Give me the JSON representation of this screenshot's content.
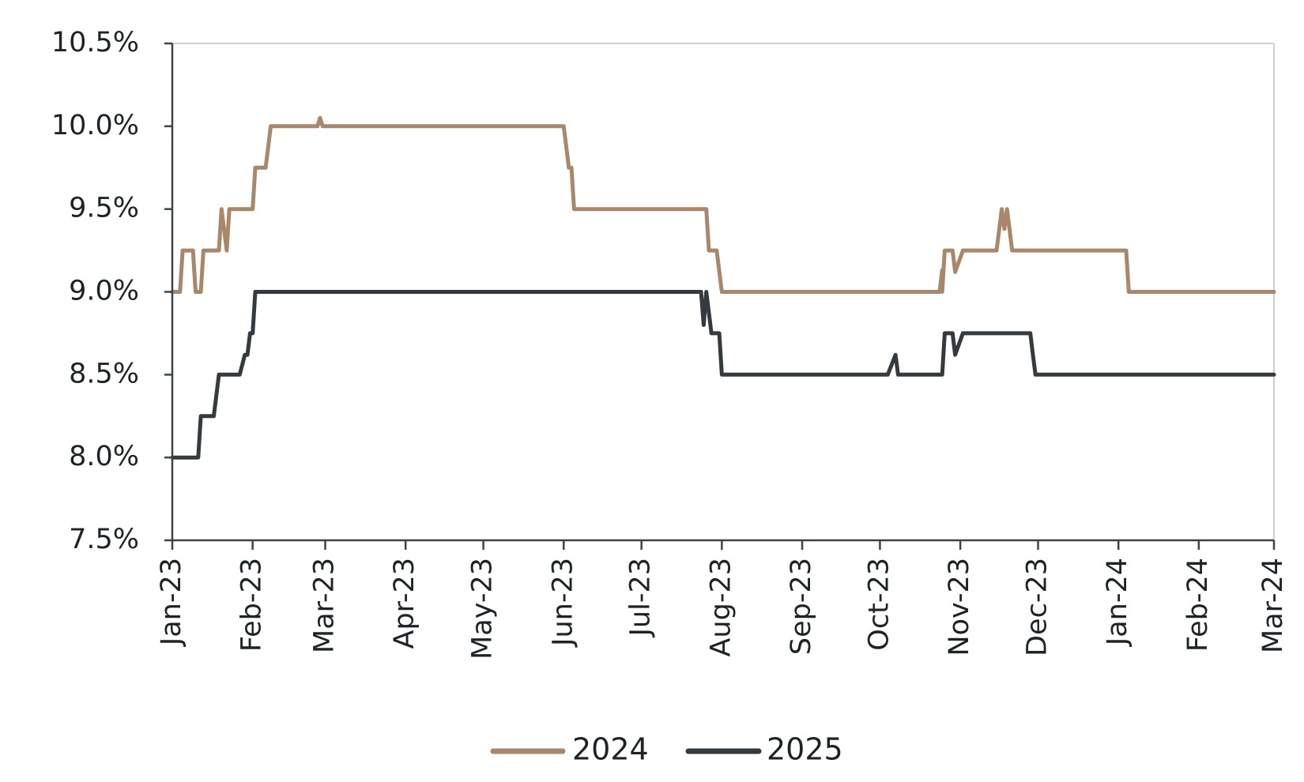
{
  "chart_data": {
    "type": "line",
    "title": "",
    "xlabel": "",
    "ylabel": "",
    "x_tick_labels": [
      "Jan-23",
      "Feb-23",
      "Mar-23",
      "Apr-23",
      "May-23",
      "Jun-23",
      "Jul-23",
      "Aug-23",
      "Sep-23",
      "Oct-23",
      "Nov-23",
      "Dec-23",
      "Jan-24",
      "Feb-24",
      "Mar-24"
    ],
    "y_tick_labels": [
      "7.5%",
      "8.0%",
      "8.5%",
      "9.0%",
      "9.5%",
      "10.0%",
      "10.5%"
    ],
    "ylim": [
      7.5,
      10.5
    ],
    "xlim": [
      "2023-01-01",
      "2024-03-01"
    ],
    "grid": false,
    "legend_position": "bottom",
    "series": [
      {
        "name": "2024",
        "color": "#a8876a",
        "points": [
          [
            "2023-01-01",
            9.0
          ],
          [
            "2023-01-04",
            9.0
          ],
          [
            "2023-01-05",
            9.25
          ],
          [
            "2023-01-09",
            9.25
          ],
          [
            "2023-01-10",
            9.0
          ],
          [
            "2023-01-12",
            9.0
          ],
          [
            "2023-01-13",
            9.25
          ],
          [
            "2023-01-19",
            9.25
          ],
          [
            "2023-01-20",
            9.5
          ],
          [
            "2023-01-22",
            9.25
          ],
          [
            "2023-01-23",
            9.5
          ],
          [
            "2023-02-01",
            9.5
          ],
          [
            "2023-02-02",
            9.75
          ],
          [
            "2023-02-06",
            9.75
          ],
          [
            "2023-02-08",
            10.0
          ],
          [
            "2023-02-26",
            10.0
          ],
          [
            "2023-02-27",
            10.05
          ],
          [
            "2023-02-28",
            10.0
          ],
          [
            "2023-06-01",
            10.0
          ],
          [
            "2023-06-03",
            9.75
          ],
          [
            "2023-06-04",
            9.75
          ],
          [
            "2023-06-05",
            9.5
          ],
          [
            "2023-07-26",
            9.5
          ],
          [
            "2023-07-27",
            9.25
          ],
          [
            "2023-07-30",
            9.25
          ],
          [
            "2023-08-01",
            9.0
          ],
          [
            "2023-10-24",
            9.0
          ],
          [
            "2023-10-25",
            9.13
          ],
          [
            "2023-10-25",
            9.0
          ],
          [
            "2023-10-26",
            9.25
          ],
          [
            "2023-10-29",
            9.25
          ],
          [
            "2023-10-30",
            9.12
          ],
          [
            "2023-11-02",
            9.25
          ],
          [
            "2023-11-15",
            9.25
          ],
          [
            "2023-11-17",
            9.5
          ],
          [
            "2023-11-18",
            9.38
          ],
          [
            "2023-11-19",
            9.5
          ],
          [
            "2023-11-21",
            9.25
          ],
          [
            "2024-01-04",
            9.25
          ],
          [
            "2024-01-05",
            9.0
          ],
          [
            "2024-03-01",
            9.0
          ]
        ]
      },
      {
        "name": "2025",
        "color": "#343b3f",
        "points": [
          [
            "2023-01-01",
            8.0
          ],
          [
            "2023-01-11",
            8.0
          ],
          [
            "2023-01-12",
            8.25
          ],
          [
            "2023-01-17",
            8.25
          ],
          [
            "2023-01-19",
            8.5
          ],
          [
            "2023-01-27",
            8.5
          ],
          [
            "2023-01-29",
            8.62
          ],
          [
            "2023-01-30",
            8.62
          ],
          [
            "2023-01-31",
            8.75
          ],
          [
            "2023-02-01",
            8.75
          ],
          [
            "2023-02-02",
            9.0
          ],
          [
            "2023-07-24",
            9.0
          ],
          [
            "2023-07-25",
            8.8
          ],
          [
            "2023-07-26",
            9.0
          ],
          [
            "2023-07-28",
            8.75
          ],
          [
            "2023-07-31",
            8.75
          ],
          [
            "2023-08-01",
            8.5
          ],
          [
            "2023-10-04",
            8.5
          ],
          [
            "2023-10-07",
            8.62
          ],
          [
            "2023-10-08",
            8.5
          ],
          [
            "2023-10-25",
            8.5
          ],
          [
            "2023-10-26",
            8.75
          ],
          [
            "2023-10-29",
            8.75
          ],
          [
            "2023-10-30",
            8.62
          ],
          [
            "2023-11-02",
            8.75
          ],
          [
            "2023-11-28",
            8.75
          ],
          [
            "2023-11-29",
            8.62
          ],
          [
            "2023-11-30",
            8.5
          ],
          [
            "2024-03-01",
            8.5
          ]
        ]
      }
    ]
  }
}
